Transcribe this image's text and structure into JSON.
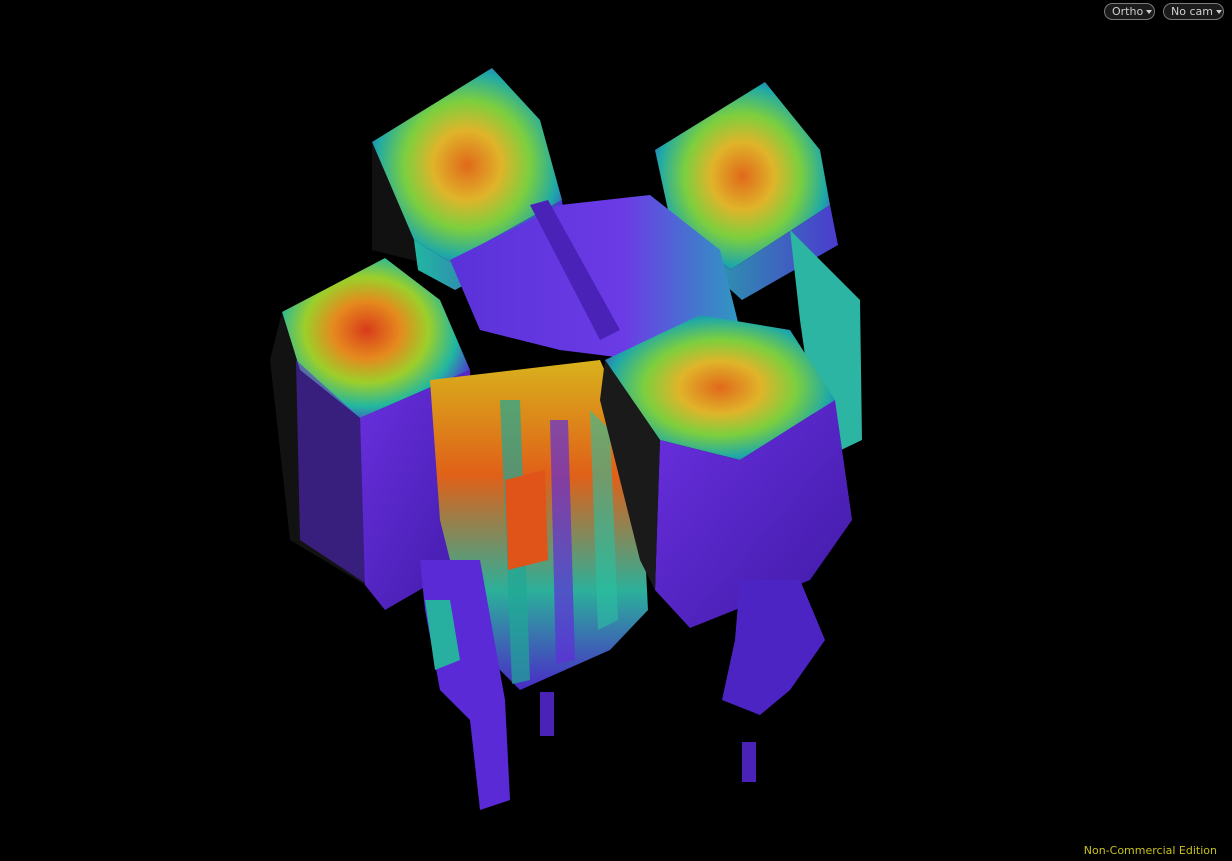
{
  "viewport": {
    "projection_menu": {
      "label": "Ortho",
      "icon": "chevron-down-icon"
    },
    "camera_menu": {
      "label": "No cam",
      "icon": "chevron-down-icon"
    },
    "edition_label": "Non-Commercial Edition"
  },
  "colors": {
    "background": "#000000",
    "edition_text": "#c7c21e",
    "heatmap_low": "#5a1fd1",
    "heatmap_mid": "#1fb5a0",
    "heatmap_high": "#d8401c"
  }
}
